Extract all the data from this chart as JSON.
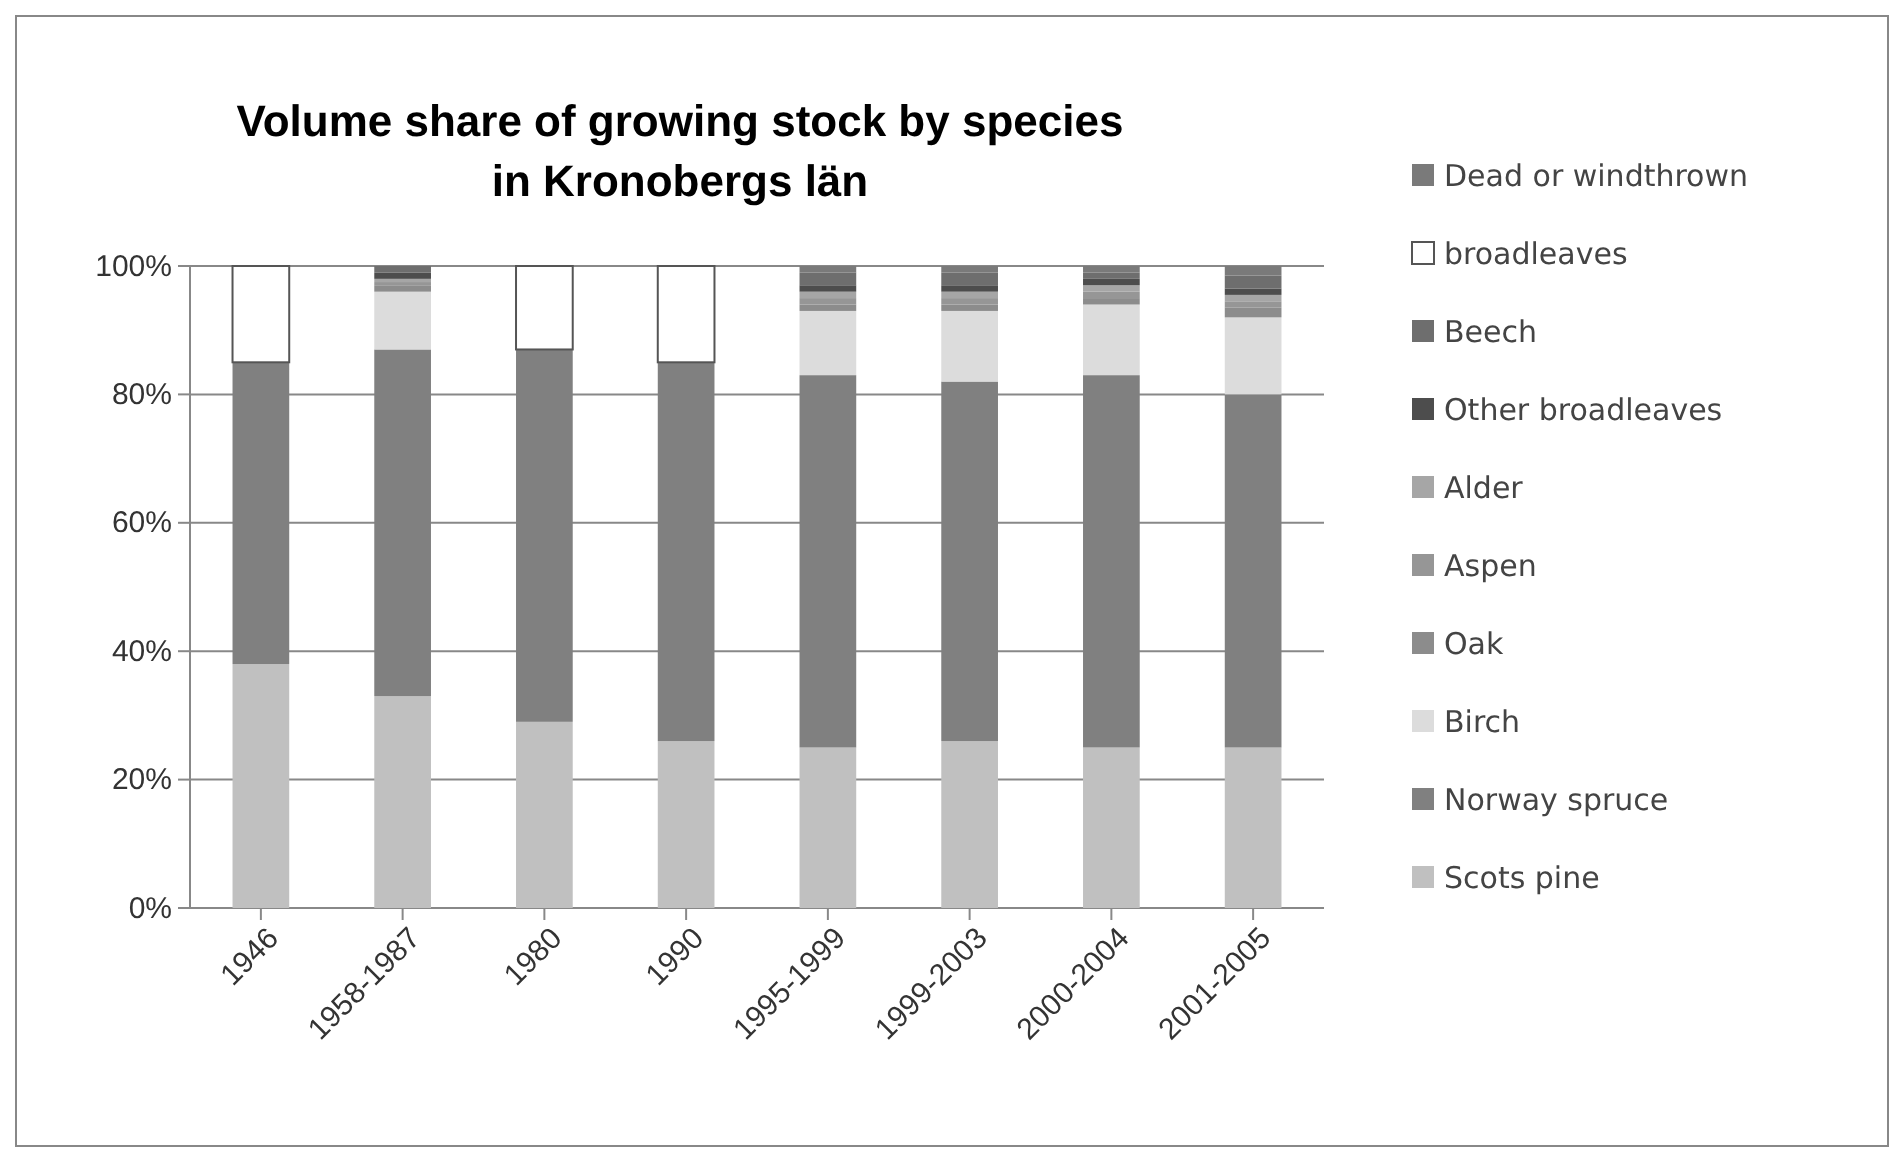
{
  "chart_data": {
    "type": "bar",
    "stacked": true,
    "title": "Volume share of growing stock by species in Kronobergs län",
    "categories": [
      "1946",
      "1958-1987",
      "1980",
      "1990",
      "1995-1999",
      "1999-2003",
      "2000-2004",
      "2001-2005"
    ],
    "series": [
      {
        "name": "Scots pine",
        "color": "#c0c0c0",
        "values": [
          38,
          33,
          29,
          26,
          25,
          26,
          25,
          25
        ]
      },
      {
        "name": "Norway spruce",
        "color": "#808080",
        "values": [
          47,
          54,
          58,
          59,
          58,
          56,
          58,
          55
        ]
      },
      {
        "name": "Birch",
        "color": "#dcdcdc",
        "values": [
          null,
          9,
          null,
          null,
          10,
          11,
          11,
          12
        ]
      },
      {
        "name": "Oak",
        "color": "#8c8c8c",
        "values": [
          null,
          1,
          null,
          null,
          1,
          1,
          1,
          1.5
        ]
      },
      {
        "name": "Aspen",
        "color": "#969696",
        "values": [
          null,
          0.5,
          null,
          null,
          1,
          1,
          1,
          1
        ]
      },
      {
        "name": "Alder",
        "color": "#a6a6a6",
        "values": [
          null,
          0.5,
          null,
          null,
          1,
          1,
          1,
          1
        ]
      },
      {
        "name": "Other broadleaves",
        "color": "#4d4d4d",
        "values": [
          null,
          1,
          null,
          null,
          1,
          1,
          1,
          1
        ]
      },
      {
        "name": "Beech",
        "color": "#6e6e6e",
        "values": [
          null,
          1,
          null,
          null,
          2,
          2,
          1,
          2
        ]
      },
      {
        "name": "broadleaves",
        "color": "#ffffff",
        "values": [
          15,
          null,
          13,
          15,
          null,
          null,
          null,
          null
        ]
      },
      {
        "name": "Dead or windthrown",
        "color": "#7a7a7a",
        "values": [
          null,
          null,
          null,
          null,
          1,
          1,
          1,
          1.5
        ]
      }
    ],
    "ylim": [
      0,
      100
    ],
    "yticks": [
      {
        "value": 0,
        "label": "0%"
      },
      {
        "value": 20,
        "label": "20%"
      },
      {
        "value": 40,
        "label": "40%"
      },
      {
        "value": 60,
        "label": "60%"
      },
      {
        "value": 80,
        "label": "80%"
      },
      {
        "value": 100,
        "label": "100%"
      }
    ],
    "grid": "y",
    "legend": "right"
  }
}
